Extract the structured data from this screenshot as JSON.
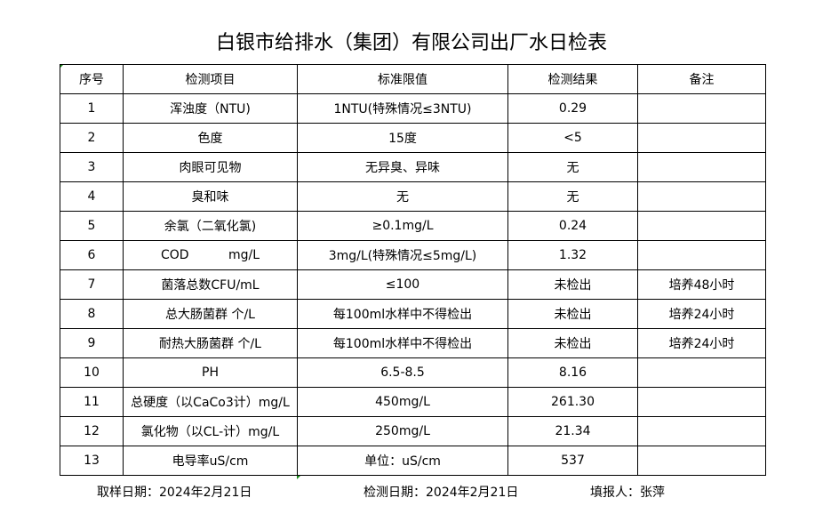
{
  "title": "白银市给排水（集团）有限公司出厂水日检表",
  "headers": [
    "序号",
    "检测项目",
    "标准限值",
    "检测结果",
    "备注"
  ],
  "rows": [
    [
      "1",
      "浑浊度（NTU)",
      "1NTU(特殊情况≤3NTU)",
      "0.29",
      ""
    ],
    [
      "2",
      "色度",
      "15度",
      "<5",
      ""
    ],
    [
      "3",
      "肉眼可见物",
      "无异臭、异味",
      "无",
      ""
    ],
    [
      "4",
      "臭和味",
      "无",
      "无",
      ""
    ],
    [
      "5",
      "余氯（二氧化氯)",
      "≥0.1mg/L",
      "0.24",
      ""
    ],
    [
      "6",
      "COD          mg/L",
      "3mg/L(特殊情况≤5mg/L)",
      "1.32",
      ""
    ],
    [
      "7",
      "菌落总数CFU/mL",
      "≤100",
      "未检出",
      "培养48小时"
    ],
    [
      "8",
      "总大肠菌群 个/L",
      "每100ml水样中不得检出",
      "未检出",
      "培养24小时"
    ],
    [
      "9",
      "耐热大肠菌群 个/L",
      "每100ml水样中不得检出",
      "未检出",
      "培养24小时"
    ],
    [
      "10",
      "PH",
      "6.5-8.5",
      "8.16",
      ""
    ],
    [
      "11",
      "总硬度（以CaCo3计）mg/L",
      "450mg/L",
      "261.30",
      ""
    ],
    [
      "12",
      "氯化物（以CL-计）mg/L",
      "250mg/L",
      "21.34",
      ""
    ],
    [
      "13",
      "电导率uS/cm",
      "单位：uS/cm",
      "537",
      ""
    ]
  ],
  "footer": {
    "sample_date": "取样日期：2024年2月21日",
    "test_date": "检测日期：2024年2月21日",
    "reporter": "填报人：张萍"
  }
}
